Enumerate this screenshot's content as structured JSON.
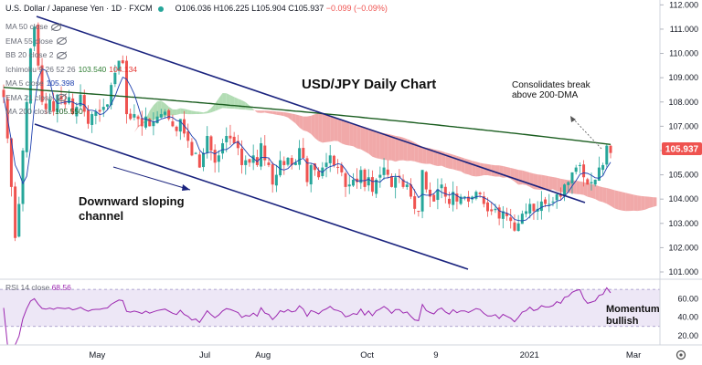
{
  "header": {
    "symbol": "U.S. Dollar / Japanese Yen · 1D · FXCM",
    "ohlc": "O106.036 H106.225 L105.904 C105.937",
    "change": "−0.099 (−0.09%)"
  },
  "indicators": [
    {
      "label": "MA 50 close",
      "value": "",
      "value_color": "#6a6d78",
      "hidden": true
    },
    {
      "label": "EMA 55 close",
      "value": "",
      "value_color": "#6a6d78",
      "hidden": true
    },
    {
      "label": "BB 20 close 2",
      "value": "",
      "value_color": "#6a6d78",
      "hidden": true
    },
    {
      "label": "Ichimoku 9 26 52 26",
      "value": "103.540",
      "value2": "104.134",
      "value_color": "#2e7d32",
      "value2_color": "#e53935",
      "hidden": false
    },
    {
      "label": "MA 5 close",
      "value": "105.398",
      "value_color": "#1e40af",
      "hidden": false
    },
    {
      "label": "EMA 21 close",
      "value": "",
      "value_color": "#6a6d78",
      "hidden": true
    },
    {
      "label": "MA 200 close",
      "value": "105.550",
      "value_color": "#1b5e20",
      "hidden": false
    }
  ],
  "annotations": {
    "title": "USD/JPY Daily Chart",
    "consolidates": [
      "Consolidates break",
      "above 200-DMA"
    ],
    "channel": [
      "Downward sloping",
      "channel"
    ],
    "momentum": [
      "Momentum",
      "bullish"
    ]
  },
  "rsi_label": {
    "name": "RSI 14 close",
    "value": "68.56"
  },
  "price_tag": "105.937",
  "colors": {
    "up": "#26a69a",
    "down": "#ef5350",
    "channel": "#1a237e",
    "ma200": "#1b5e20",
    "ma5": "#1e40af",
    "cloud_bull": "#a5d6a7",
    "cloud_bear": "#ef9a9a",
    "rsi_line": "#9c27b0",
    "rsi_band": "#ede7f6",
    "tag_bg": "#ef5350"
  },
  "chart_data": {
    "type": "candlestick",
    "price_axis": {
      "ticks": [
        "112.000",
        "111.000",
        "110.000",
        "109.000",
        "108.000",
        "107.000",
        "106.000",
        "105.000",
        "104.000",
        "103.000",
        "102.000",
        "101.000"
      ],
      "range": [
        100.7,
        112.2
      ]
    },
    "rsi_axis": {
      "ticks": [
        "60.00",
        "40.00",
        "20.00"
      ],
      "range": [
        10,
        80
      ],
      "bands": [
        30,
        70
      ]
    },
    "time_axis": [
      "May",
      "Jul",
      "Aug",
      "Oct",
      "9",
      "2021",
      "Mar"
    ],
    "date_positions": [
      "2020-05-01",
      "2020-07-01",
      "2020-08-03",
      "2020-10-01",
      "2020-11-09",
      "2021-01-01",
      "2021-03-01"
    ],
    "start_date": "2020-03-09",
    "close": [
      108.2,
      106.5,
      104.5,
      102.4,
      103.8,
      106.0,
      108.0,
      110.2,
      111.1,
      109.5,
      108.0,
      107.7,
      108.1,
      107.6,
      108.3,
      108.1,
      107.9,
      108.2,
      107.5,
      107.8,
      108.3,
      107.6,
      107.1,
      107.5,
      107.6,
      107.6,
      107.8,
      107.9,
      108.7,
      109.2,
      109.7,
      109.6,
      107.5,
      107.3,
      107.5,
      107.3,
      107.0,
      107.4,
      107.0,
      107.2,
      107.4,
      107.5,
      107.6,
      107.3,
      107.0,
      106.8,
      107.3,
      106.7,
      106.4,
      105.8,
      105.9,
      105.3,
      105.9,
      106.6,
      106.0,
      105.5,
      105.8,
      106.3,
      106.6,
      106.5,
      106.3,
      106.1,
      105.4,
      105.6,
      105.5,
      105.8,
      105.4,
      106.3,
      105.6,
      105.4,
      104.6,
      105.0,
      105.6,
      105.4,
      105.7,
      105.4,
      105.5,
      106.1,
      105.7,
      104.7,
      105.4,
      105.2,
      104.9,
      105.3,
      105.5,
      105.8,
      105.4,
      105.3,
      105.1,
      104.5,
      104.6,
      104.8,
      104.7,
      105.2,
      104.5,
      104.9,
      104.3,
      104.8,
      105.0,
      105.3,
      105.0,
      104.5,
      104.9,
      104.9,
      104.5,
      104.6,
      104.1,
      103.6,
      103.5,
      105.2,
      104.4,
      104.1,
      103.9,
      104.4,
      104.6,
      104.1,
      103.8,
      104.3,
      103.9,
      104.1,
      104.1,
      103.9,
      104.1,
      104.3,
      104.2,
      103.8,
      103.5,
      103.5,
      103.6,
      103.2,
      103.5,
      103.3,
      103.1,
      102.7,
      103.0,
      103.4,
      103.5,
      103.8,
      103.5,
      103.6,
      103.9,
      103.8,
      103.8,
      103.9,
      104.2,
      104.1,
      104.6,
      104.7,
      105.1,
      105.3,
      105.4,
      104.9,
      104.6,
      104.7,
      104.8,
      105.3,
      105.4,
      106.2,
      105.9
    ]
  }
}
